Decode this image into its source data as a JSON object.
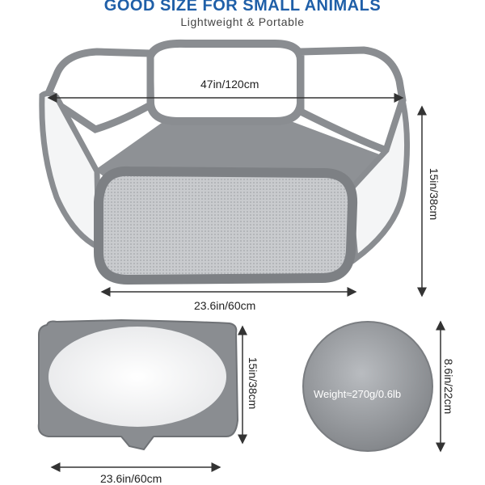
{
  "header": {
    "title": "GOOD SIZE FOR SMALL ANIMALS",
    "subtitle": "Lightweight & Portable"
  },
  "dimensions": {
    "length_top": "47in/120cm",
    "height_open": "15in/38cm",
    "width_open": "23.6in/60cm",
    "height_panel": "15in/38cm",
    "width_panel": "23.6in/60cm",
    "diameter_folded": "8.6in/22cm"
  },
  "weight_label": "Weight≈270g/0.6lb",
  "colors": {
    "title": "#1f5fa8",
    "subtitle": "#444444",
    "fabric": "#8a8d91",
    "fabric_dark": "#6f7276",
    "arrow": "#333333"
  }
}
